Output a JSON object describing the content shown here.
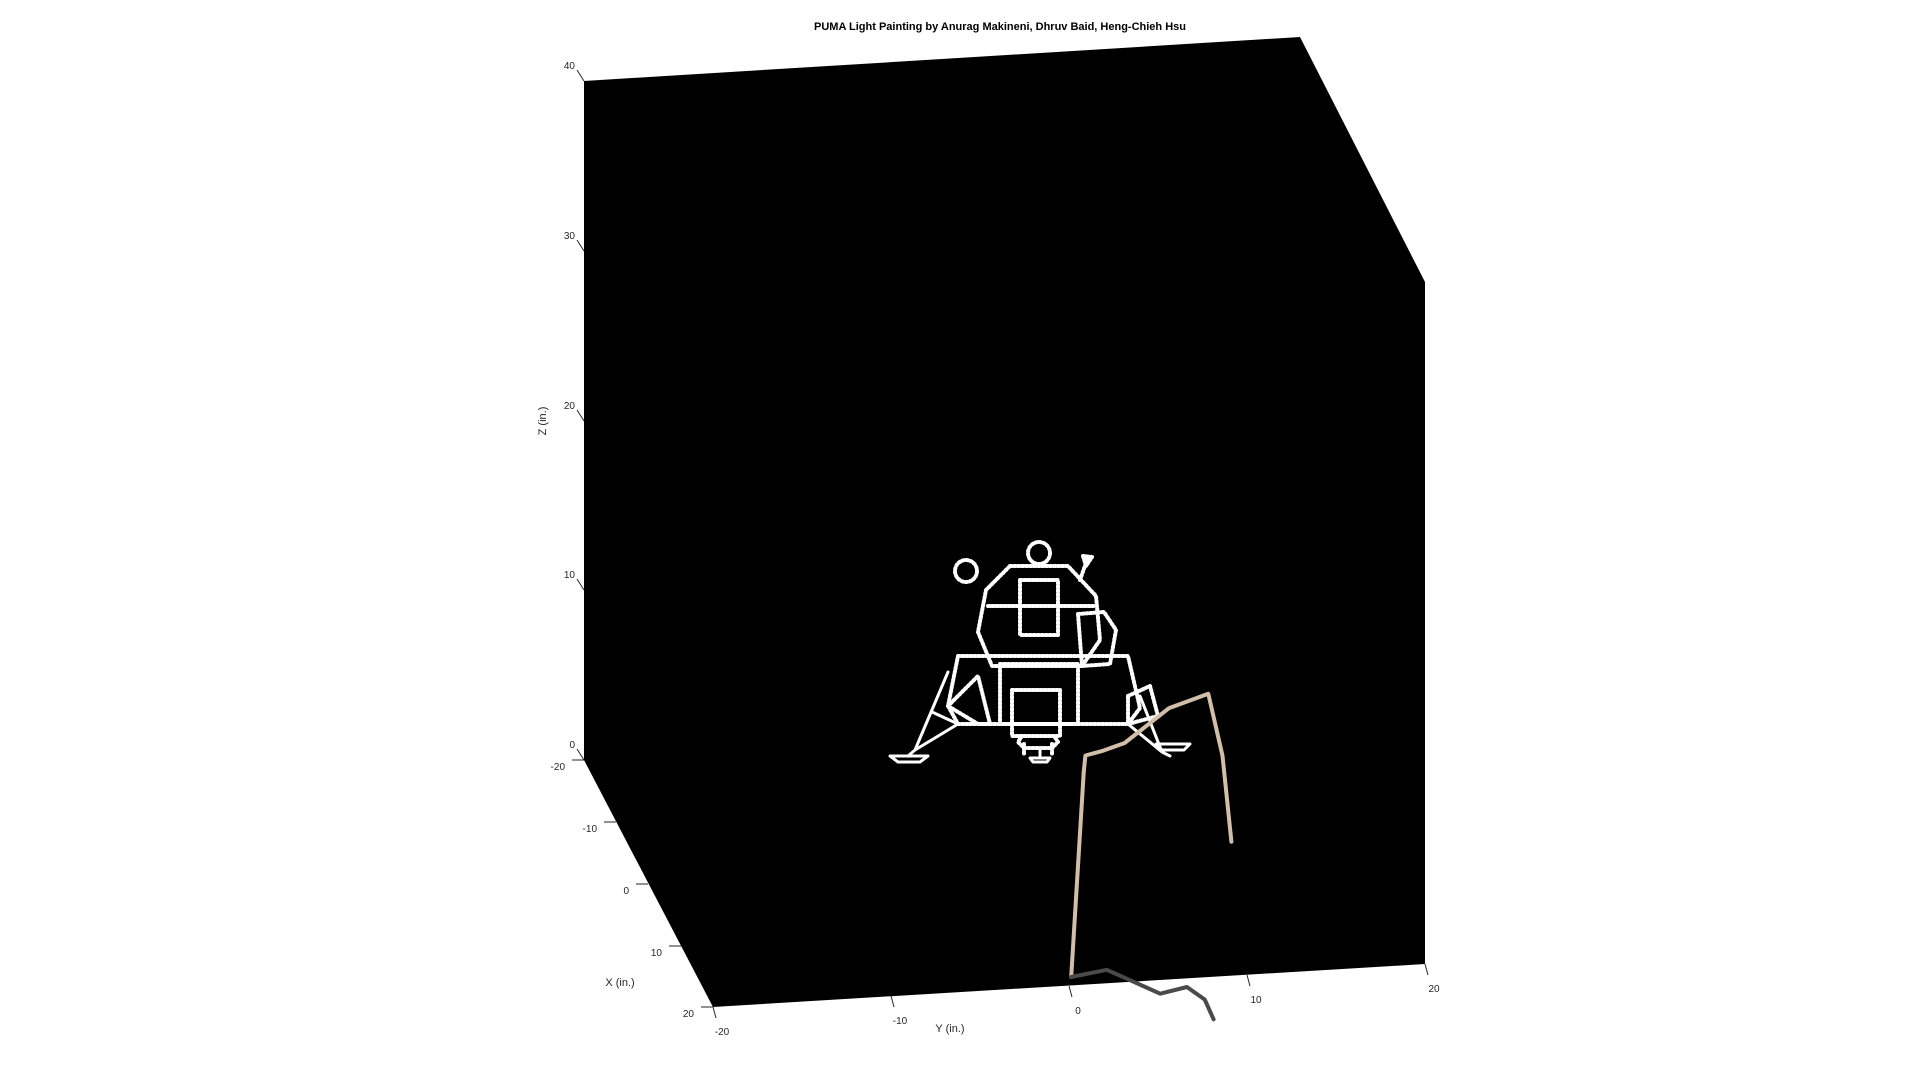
{
  "chart_data": {
    "type": "line3d",
    "title": "PUMA Light Painting by Anurag Makineni, Dhruv Baid, Heng-Chieh Hsu",
    "xlabel": "X (in.)",
    "ylabel": "Y (in.)",
    "zlabel": "Z (in.)",
    "xlim": [
      -20,
      20
    ],
    "ylim": [
      -20,
      20
    ],
    "zlim": [
      0,
      40
    ],
    "x_ticks": [
      "-20",
      "-10",
      "0",
      "10",
      "20"
    ],
    "y_ticks": [
      "-20",
      "-10",
      "0",
      "10",
      "20"
    ],
    "z_ticks": [
      "0",
      "10",
      "20",
      "30",
      "40"
    ],
    "background": "#000000",
    "colors": {
      "drawing": "#ffffff",
      "robot_lit": "#d2bfa8",
      "robot_shadow": "#4a4a4a"
    },
    "series": [
      {
        "color": "#d2bfa8",
        "points": [
          [
            0,
            -2.8,
            5.5
          ],
          [
            0,
            -2.7,
            6.5
          ],
          [
            0,
            -1.8,
            6.7
          ],
          [
            0,
            -0.5,
            7.1
          ],
          [
            0,
            2.0,
            9.0
          ],
          [
            0,
            4.2,
            9.7
          ],
          [
            0,
            5.0,
            6.0
          ],
          [
            0,
            5.5,
            0.9
          ]
        ]
      },
      {
        "color": "#d2bfa8",
        "points": [
          [
            0,
            -2.8,
            5.5
          ],
          [
            0,
            -3.5,
            -6.5
          ]
        ]
      },
      {
        "color": "#4a4a4a",
        "points": [
          [
            0,
            -3.5,
            -6.5
          ],
          [
            0,
            -1.5,
            -6.2
          ],
          [
            0,
            1.5,
            -7.8
          ],
          [
            0,
            3.0,
            -7.5
          ],
          [
            0,
            4.0,
            -8.3
          ],
          [
            0,
            4.5,
            -9.5
          ]
        ]
      }
    ]
  }
}
